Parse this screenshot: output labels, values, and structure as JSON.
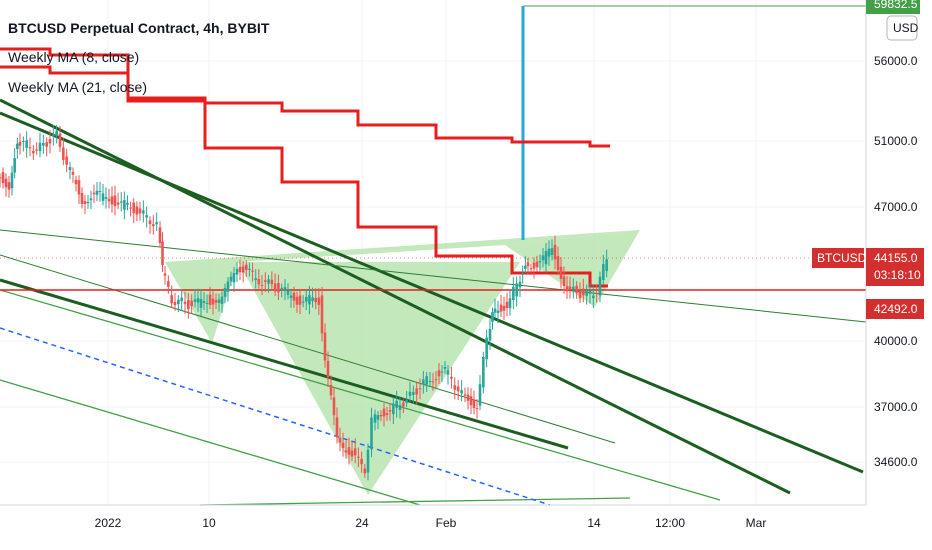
{
  "chart_data": {
    "type": "candlestick",
    "title": "BTCUSD Perpetual Contract, 4h, BYBIT",
    "indicators": [
      {
        "name": "Weekly MA (8, close)",
        "color": "#e61e1e"
      },
      {
        "name": "Weekly MA (21, close)",
        "color": "#e61e1e"
      }
    ],
    "currency": "USD",
    "y_axis_ticks": [
      "56000.0",
      "51000.0",
      "47000.0",
      "40000.0",
      "37000.0",
      "34600.0"
    ],
    "x_axis_ticks": [
      "2022",
      "10",
      "24",
      "Feb",
      "14",
      "12:00",
      "Mar"
    ],
    "price_labels": {
      "top_label": "59832.5",
      "symbol": "BTCUSD",
      "last_price": "44155.0",
      "countdown": "03:18:10",
      "level": "42492.0"
    },
    "pattern": "inverse head and shoulders",
    "colors": {
      "up": "#26a69a",
      "down": "#ef5350",
      "ma": "#e61e1e",
      "trendline_dark": "#1b5e20",
      "trendline_light": "#43a047",
      "pattern_fill": "#b7e4b0",
      "vertical_marker": "#29a8d6",
      "projection_dashed": "#2962ff",
      "price_badge": "#d32f2f",
      "top_badge": "#43a047"
    }
  }
}
